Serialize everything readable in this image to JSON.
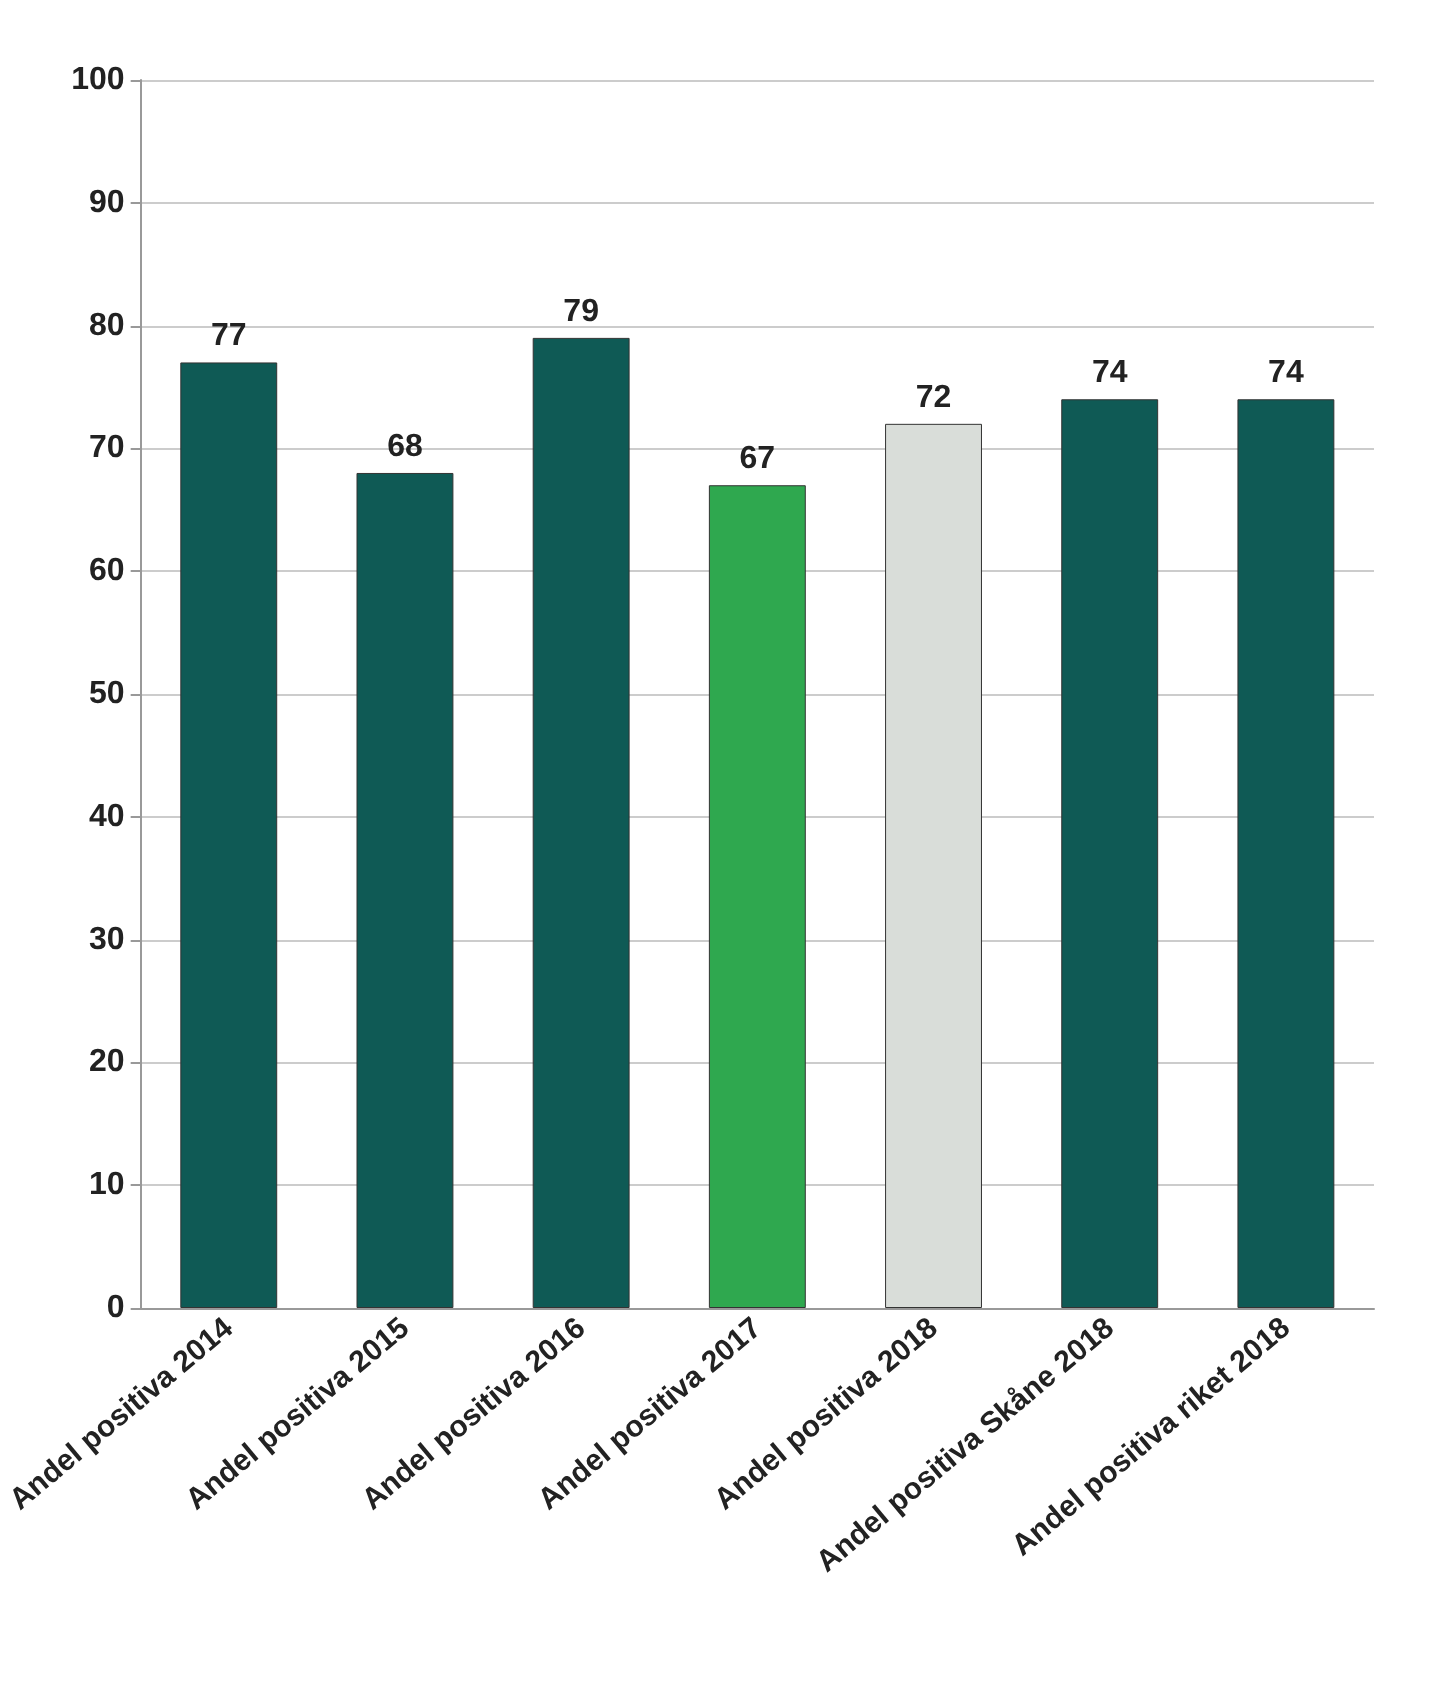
{
  "chart_data": {
    "type": "bar",
    "categories": [
      "Andel positiva 2014",
      "Andel positiva 2015",
      "Andel positiva 2016",
      "Andel positiva 2017",
      "Andel positiva 2018",
      "Andel positiva Skåne 2018",
      "Andel positiva riket 2018"
    ],
    "values": [
      77,
      68,
      79,
      67,
      72,
      74,
      74
    ],
    "colors": [
      "#0f5a55",
      "#0f5a55",
      "#0f5a55",
      "#2fa84f",
      "#d9ddd9",
      "#0f5a55",
      "#0f5a55"
    ],
    "ylim": [
      0,
      100
    ],
    "yticks": [
      0,
      10,
      20,
      30,
      40,
      50,
      60,
      70,
      80,
      90,
      100
    ],
    "grid": "y",
    "data_labels": true
  }
}
